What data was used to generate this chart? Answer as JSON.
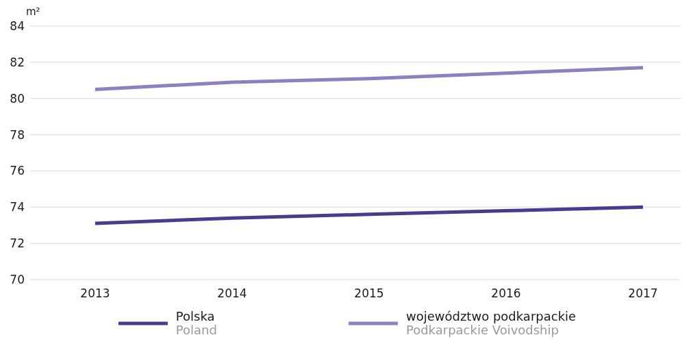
{
  "chart_data": {
    "type": "line",
    "ylabel": "m²",
    "categories": [
      "2013",
      "2014",
      "2015",
      "2016",
      "2017"
    ],
    "series": [
      {
        "name": "Polska\nPoland",
        "color": "#4b3a8f",
        "values": [
          73.1,
          73.4,
          73.6,
          73.8,
          74.0
        ]
      },
      {
        "name": "województwo podkarpackie\nPodkarpackie Voivodship",
        "color": "#8f7fc0",
        "values": [
          80.5,
          80.9,
          81.1,
          81.4,
          81.7
        ]
      }
    ],
    "ylim": [
      70,
      84
    ],
    "yticks": [
      70,
      72,
      74,
      76,
      78,
      80,
      82,
      84
    ],
    "grid": "y",
    "legend": "bottom",
    "marker": "none",
    "line_style": "solid"
  }
}
